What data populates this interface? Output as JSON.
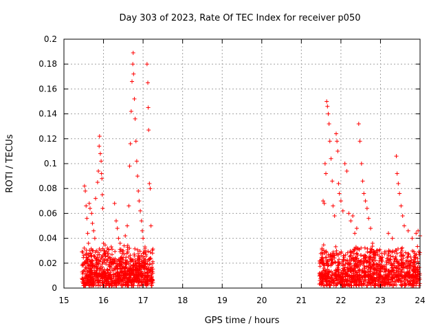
{
  "chart_data": {
    "type": "scatter",
    "title": "Day 303 of 2023, Rate Of TEC Index for receiver p050",
    "xlabel": "GPS time / hours",
    "ylabel": "ROTI / TECUs",
    "xlim": [
      15,
      24
    ],
    "ylim": [
      0,
      0.2
    ],
    "x_ticks": [
      "15",
      "16",
      "17",
      "18",
      "19",
      "20",
      "21",
      "22",
      "23",
      "24"
    ],
    "y_ticks": [
      "0",
      "0.02",
      "0.04",
      "0.06",
      "0.08",
      "0.1",
      "0.12",
      "0.14",
      "0.16",
      "0.18",
      "0.2"
    ],
    "grid": true,
    "marker": "+",
    "marker_color": "#ff0000",
    "series": [
      {
        "name": "ROTI",
        "points": [
          [
            15.52,
            0.082
          ],
          [
            15.54,
            0.078
          ],
          [
            15.56,
            0.066
          ],
          [
            15.58,
            0.056
          ],
          [
            15.6,
            0.044
          ],
          [
            15.62,
            0.036
          ],
          [
            15.64,
            0.068
          ],
          [
            15.66,
            0.064
          ],
          [
            15.7,
            0.06
          ],
          [
            15.72,
            0.052
          ],
          [
            15.75,
            0.046
          ],
          [
            15.78,
            0.04
          ],
          [
            15.8,
            0.072
          ],
          [
            15.82,
            0.03
          ],
          [
            15.85,
            0.085
          ],
          [
            15.87,
            0.094
          ],
          [
            15.89,
            0.114
          ],
          [
            15.9,
            0.122
          ],
          [
            15.92,
            0.108
          ],
          [
            15.94,
            0.102
          ],
          [
            15.95,
            0.092
          ],
          [
            15.96,
            0.088
          ],
          [
            15.97,
            0.075
          ],
          [
            15.98,
            0.064
          ],
          [
            16.0,
            0.036
          ],
          [
            16.02,
            0.03
          ],
          [
            16.05,
            0.026
          ],
          [
            16.1,
            0.022
          ],
          [
            16.2,
            0.02
          ],
          [
            16.28,
            0.068
          ],
          [
            16.32,
            0.054
          ],
          [
            16.35,
            0.048
          ],
          [
            16.38,
            0.04
          ],
          [
            16.42,
            0.036
          ],
          [
            16.48,
            0.03
          ],
          [
            16.52,
            0.034
          ],
          [
            16.55,
            0.042
          ],
          [
            16.6,
            0.05
          ],
          [
            16.64,
            0.066
          ],
          [
            16.66,
            0.098
          ],
          [
            16.68,
            0.116
          ],
          [
            16.7,
            0.142
          ],
          [
            16.72,
            0.166
          ],
          [
            16.74,
            0.18
          ],
          [
            16.75,
            0.189
          ],
          [
            16.76,
            0.172
          ],
          [
            16.78,
            0.152
          ],
          [
            16.8,
            0.136
          ],
          [
            16.82,
            0.118
          ],
          [
            16.84,
            0.102
          ],
          [
            16.86,
            0.09
          ],
          [
            16.88,
            0.078
          ],
          [
            16.9,
            0.07
          ],
          [
            16.93,
            0.062
          ],
          [
            16.96,
            0.054
          ],
          [
            16.98,
            0.046
          ],
          [
            17.0,
            0.04
          ],
          [
            17.05,
            0.03
          ],
          [
            17.1,
            0.18
          ],
          [
            17.12,
            0.165
          ],
          [
            17.13,
            0.145
          ],
          [
            17.14,
            0.127
          ],
          [
            17.16,
            0.084
          ],
          [
            17.18,
            0.08
          ],
          [
            17.2,
            0.05
          ],
          [
            21.55,
            0.07
          ],
          [
            21.58,
            0.068
          ],
          [
            21.6,
            0.1
          ],
          [
            21.62,
            0.092
          ],
          [
            21.64,
            0.15
          ],
          [
            21.66,
            0.146
          ],
          [
            21.68,
            0.14
          ],
          [
            21.7,
            0.132
          ],
          [
            21.72,
            0.118
          ],
          [
            21.75,
            0.104
          ],
          [
            21.78,
            0.086
          ],
          [
            21.8,
            0.066
          ],
          [
            21.84,
            0.058
          ],
          [
            21.88,
            0.124
          ],
          [
            21.9,
            0.118
          ],
          [
            21.92,
            0.11
          ],
          [
            21.94,
            0.084
          ],
          [
            21.96,
            0.076
          ],
          [
            22.0,
            0.07
          ],
          [
            22.05,
            0.062
          ],
          [
            22.1,
            0.1
          ],
          [
            22.15,
            0.094
          ],
          [
            22.2,
            0.06
          ],
          [
            22.25,
            0.054
          ],
          [
            22.3,
            0.058
          ],
          [
            22.35,
            0.044
          ],
          [
            22.4,
            0.048
          ],
          [
            22.45,
            0.132
          ],
          [
            22.48,
            0.118
          ],
          [
            22.52,
            0.1
          ],
          [
            22.55,
            0.086
          ],
          [
            22.58,
            0.076
          ],
          [
            22.62,
            0.07
          ],
          [
            22.66,
            0.064
          ],
          [
            22.7,
            0.056
          ],
          [
            22.75,
            0.048
          ],
          [
            22.8,
            0.036
          ],
          [
            22.9,
            0.03
          ],
          [
            23.0,
            0.024
          ],
          [
            23.2,
            0.044
          ],
          [
            23.3,
            0.04
          ],
          [
            23.4,
            0.106
          ],
          [
            23.42,
            0.092
          ],
          [
            23.45,
            0.084
          ],
          [
            23.48,
            0.076
          ],
          [
            23.52,
            0.066
          ],
          [
            23.56,
            0.058
          ],
          [
            23.6,
            0.05
          ],
          [
            23.7,
            0.046
          ],
          [
            23.8,
            0.04
          ],
          [
            23.9,
            0.044
          ],
          [
            23.95,
            0.046
          ],
          [
            24.0,
            0.042
          ]
        ],
        "clusters": [
          {
            "x_range": [
              15.45,
              17.25
            ],
            "y_range": [
              0.0,
              0.035
            ],
            "count": 900
          },
          {
            "x_range": [
              21.45,
              24.0
            ],
            "y_range": [
              0.0,
              0.035
            ],
            "count": 1100
          }
        ]
      }
    ]
  }
}
